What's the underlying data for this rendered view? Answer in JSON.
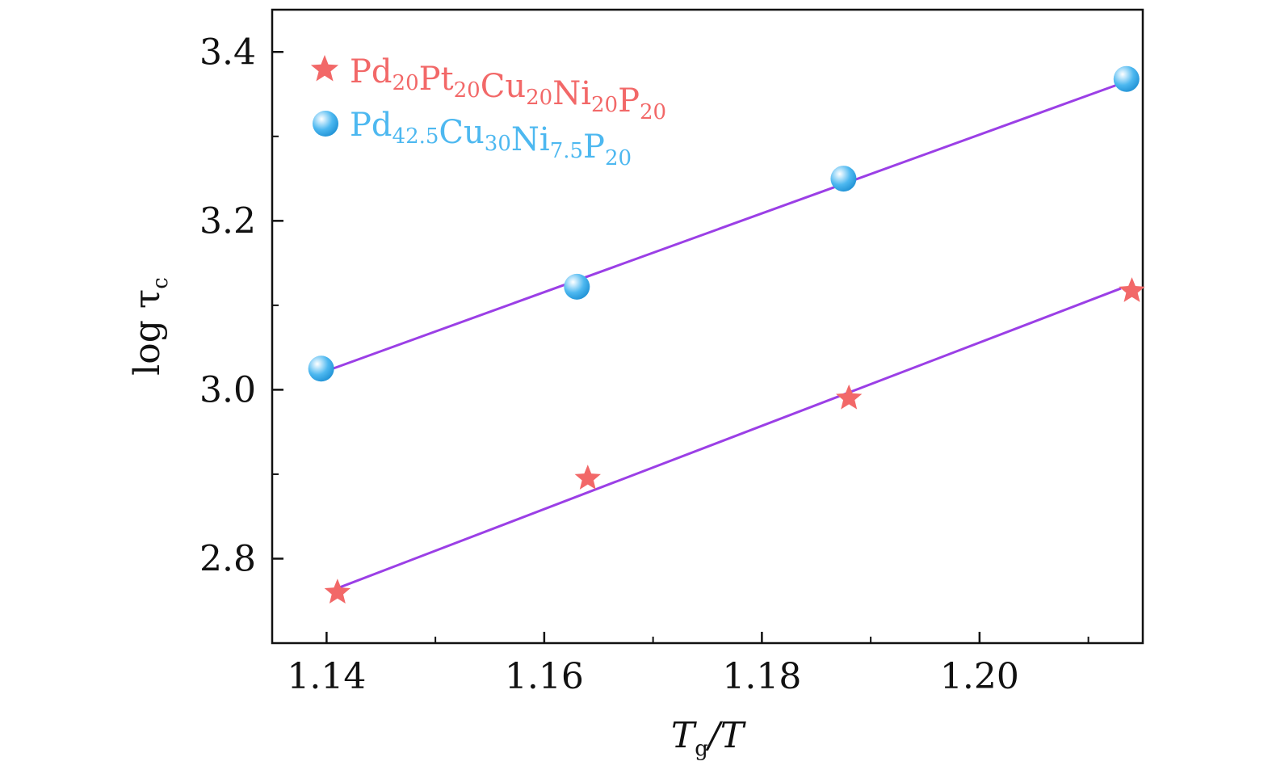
{
  "chart_data": {
    "type": "scatter",
    "xlabel": {
      "main": "T",
      "sub": "g",
      "rest": "/T"
    },
    "ylabel": {
      "main": "log τ",
      "sub": "c"
    },
    "xlim": [
      1.135,
      1.215
    ],
    "ylim": [
      2.7,
      3.45
    ],
    "xticks": [
      1.14,
      1.16,
      1.18,
      1.2
    ],
    "xtick_labels": [
      "1.14",
      "1.16",
      "1.18",
      "1.20"
    ],
    "xminor": [
      1.15,
      1.17,
      1.19,
      1.21
    ],
    "yticks": [
      2.8,
      3.0,
      3.2,
      3.4
    ],
    "ytick_labels": [
      "2.8",
      "3.0",
      "3.2",
      "3.4"
    ],
    "yminor": [
      2.9,
      3.1,
      3.3
    ],
    "grid": false,
    "legend_position": "top-left",
    "fit_color": "#9b3fe6",
    "series": [
      {
        "name": [
          [
            "Pd",
            "20"
          ],
          [
            "Pt",
            "20"
          ],
          [
            "Cu",
            "20"
          ],
          [
            "Ni",
            "20"
          ],
          [
            "P",
            "20"
          ]
        ],
        "marker": "star",
        "color": "#f26868",
        "x": [
          1.141,
          1.164,
          1.188,
          1.214
        ],
        "y": [
          2.76,
          2.895,
          2.99,
          3.117
        ],
        "fit": {
          "x": [
            1.141,
            1.213
          ],
          "y": [
            2.765,
            3.12
          ]
        }
      },
      {
        "name": [
          [
            "Pd",
            "42.5"
          ],
          [
            "Cu",
            "30"
          ],
          [
            "Ni",
            "7.5"
          ],
          [
            "P",
            "20"
          ]
        ],
        "marker": "sphere",
        "color": "#4db8f0",
        "x": [
          1.1395,
          1.163,
          1.1875,
          1.2135
        ],
        "y": [
          3.025,
          3.122,
          3.25,
          3.368
        ],
        "fit": {
          "x": [
            1.1395,
            1.2135
          ],
          "y": [
            3.02,
            3.365
          ]
        }
      }
    ]
  }
}
